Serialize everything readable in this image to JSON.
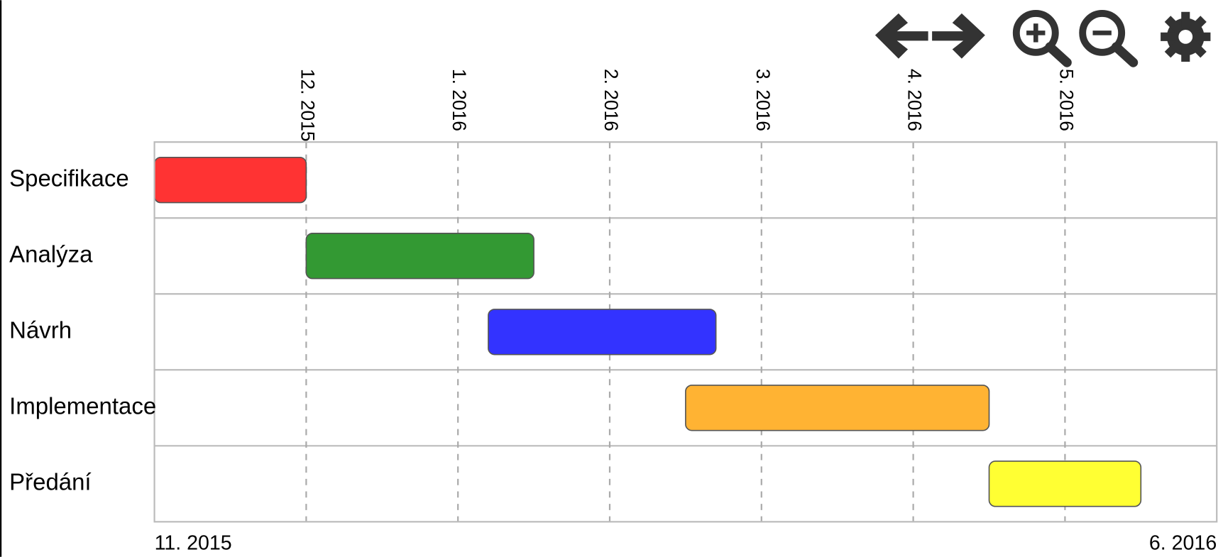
{
  "chart_data": {
    "type": "gantt",
    "categories": [
      "Specifikace",
      "Analýza",
      "Návrh",
      "Implementace",
      "Předání"
    ],
    "start": [
      0,
      1.0,
      2.2,
      3.5,
      5.5
    ],
    "end": [
      1.0,
      2.5,
      3.7,
      5.5,
      6.5
    ],
    "colors": [
      "#ff3333",
      "#339933",
      "#3333ff",
      "#ffb333",
      "#ffff33"
    ],
    "xlim": [
      0,
      7
    ],
    "xlim_labels": [
      "11. 2015",
      "6. 2016"
    ],
    "xticks": [
      {
        "value": 1,
        "label": "12. 2015"
      },
      {
        "value": 2,
        "label": "1. 2016"
      },
      {
        "value": 3,
        "label": "2. 2016"
      },
      {
        "value": 4,
        "label": "3. 2016"
      },
      {
        "value": 5,
        "label": "4. 2016"
      },
      {
        "value": 6,
        "label": "5. 2016"
      }
    ],
    "grid": true
  }
}
